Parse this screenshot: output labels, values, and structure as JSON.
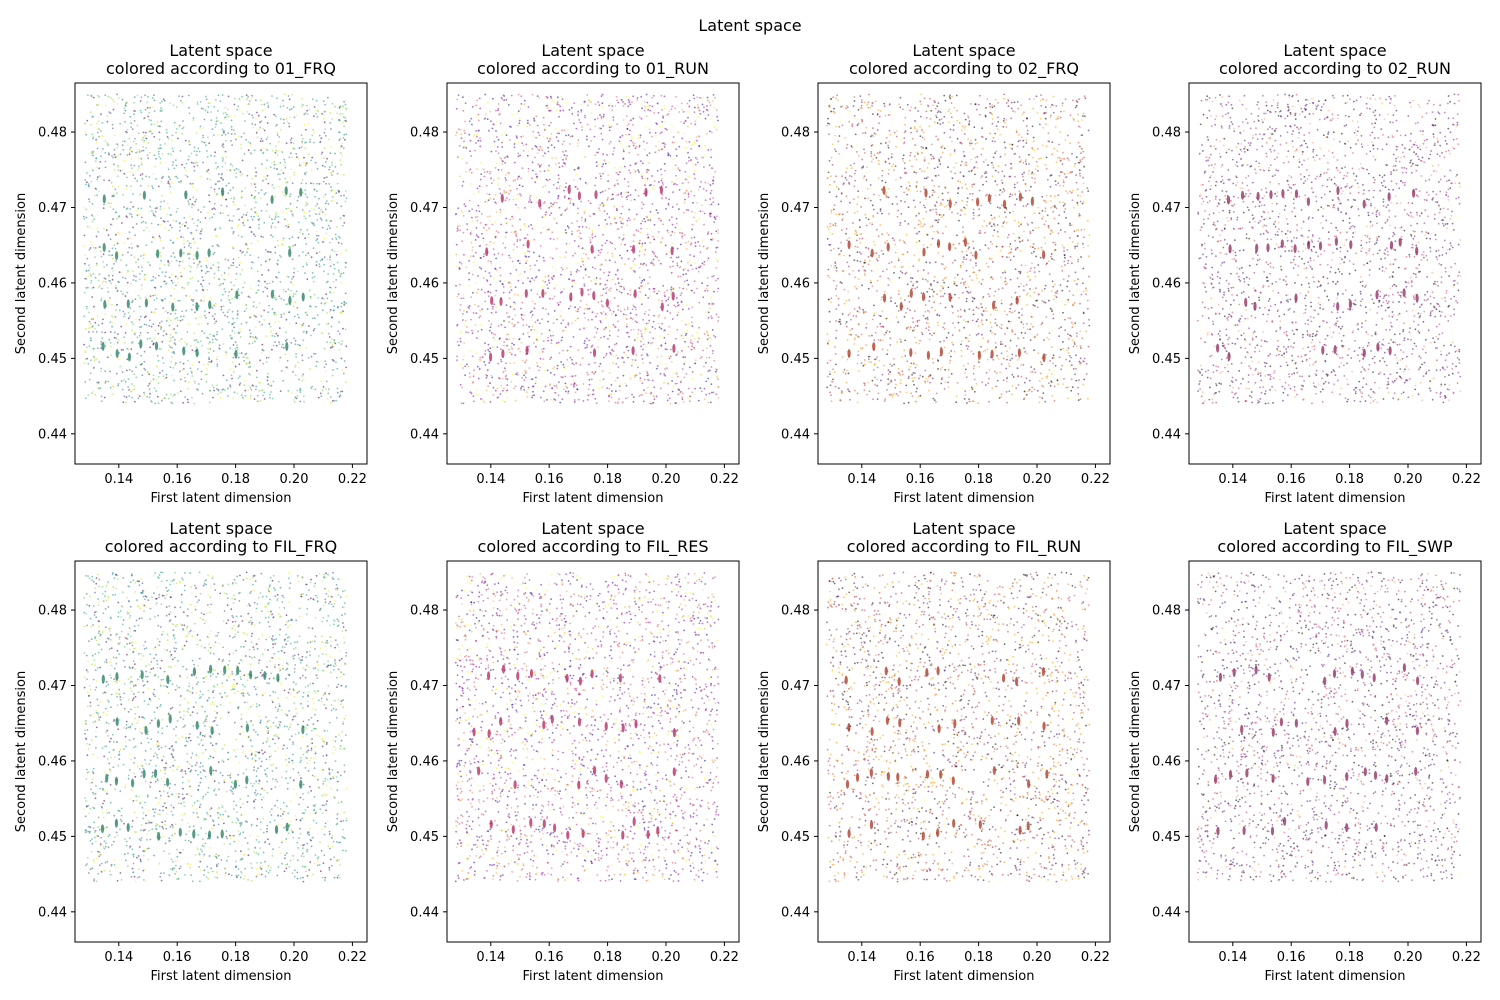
{
  "figure": {
    "suptitle": "Latent space"
  },
  "chart_data": [
    {
      "type": "scatter",
      "title": "Latent space",
      "subtitle": "colored according to 01_FRQ",
      "xlabel": "First latent dimension",
      "ylabel": "Second latent dimension",
      "xlim": [
        0.125,
        0.225
      ],
      "ylim": [
        0.436,
        0.4865
      ],
      "xticks": [
        "0.14",
        "0.16",
        "0.18",
        "0.20",
        "0.22"
      ],
      "yticks": [
        "0.44",
        "0.45",
        "0.46",
        "0.47",
        "0.48"
      ],
      "colormap": "viridis",
      "palette": [
        "#440154",
        "#3b528b",
        "#21918c",
        "#2a788e",
        "#5ec962",
        "#addc30",
        "#fde725",
        "#22a884"
      ],
      "cluster_color": "#1f7a5c",
      "point_cloud": {
        "x_range": [
          0.128,
          0.218
        ],
        "y_range": [
          0.44,
          0.485
        ],
        "density": "dense"
      }
    },
    {
      "type": "scatter",
      "title": "Latent space",
      "subtitle": "colored according to 01_RUN",
      "xlabel": "First latent dimension",
      "ylabel": "Second latent dimension",
      "xlim": [
        0.125,
        0.225
      ],
      "ylim": [
        0.436,
        0.4865
      ],
      "xticks": [
        "0.14",
        "0.16",
        "0.18",
        "0.20",
        "0.22"
      ],
      "yticks": [
        "0.44",
        "0.45",
        "0.46",
        "0.47",
        "0.48"
      ],
      "colormap": "plasma",
      "palette": [
        "#0d0887",
        "#6a00a8",
        "#b12a90",
        "#e16462",
        "#fca636",
        "#f0f921",
        "#cc4778",
        "#7e03a8"
      ],
      "cluster_color": "#b0245e",
      "point_cloud": {
        "x_range": [
          0.128,
          0.218
        ],
        "y_range": [
          0.44,
          0.485
        ],
        "density": "dense"
      }
    },
    {
      "type": "scatter",
      "title": "Latent space",
      "subtitle": "colored according to 02_FRQ",
      "xlabel": "First latent dimension",
      "ylabel": "Second latent dimension",
      "xlim": [
        0.125,
        0.225
      ],
      "ylim": [
        0.436,
        0.4865
      ],
      "xticks": [
        "0.14",
        "0.16",
        "0.18",
        "0.20",
        "0.22"
      ],
      "yticks": [
        "0.44",
        "0.45",
        "0.46",
        "0.47",
        "0.48"
      ],
      "colormap": "inferno",
      "palette": [
        "#000004",
        "#420a68",
        "#932667",
        "#dd513a",
        "#fca50a",
        "#fcffa4",
        "#bc3754",
        "#f98e09"
      ],
      "cluster_color": "#a8321e",
      "point_cloud": {
        "x_range": [
          0.128,
          0.218
        ],
        "y_range": [
          0.44,
          0.485
        ],
        "density": "dense"
      }
    },
    {
      "type": "scatter",
      "title": "Latent space",
      "subtitle": "colored according to 02_RUN",
      "xlabel": "First latent dimension",
      "ylabel": "Second latent dimension",
      "xlim": [
        0.125,
        0.225
      ],
      "ylim": [
        0.436,
        0.4865
      ],
      "xticks": [
        "0.14",
        "0.16",
        "0.18",
        "0.20",
        "0.22"
      ],
      "yticks": [
        "0.44",
        "0.45",
        "0.46",
        "0.47",
        "0.48"
      ],
      "colormap": "magma",
      "palette": [
        "#000004",
        "#3b0f70",
        "#8c2981",
        "#de4968",
        "#fe9f6d",
        "#fcfdbf",
        "#b73779",
        "#51127c"
      ],
      "cluster_color": "#8c2457",
      "point_cloud": {
        "x_range": [
          0.128,
          0.218
        ],
        "y_range": [
          0.44,
          0.485
        ],
        "density": "dense"
      }
    },
    {
      "type": "scatter",
      "title": "Latent space",
      "subtitle": "colored according to FIL_FRQ",
      "xlabel": "First latent dimension",
      "ylabel": "Second latent dimension",
      "xlim": [
        0.125,
        0.225
      ],
      "ylim": [
        0.436,
        0.4865
      ],
      "xticks": [
        "0.14",
        "0.16",
        "0.18",
        "0.20",
        "0.22"
      ],
      "yticks": [
        "0.44",
        "0.45",
        "0.46",
        "0.47",
        "0.48"
      ],
      "colormap": "viridis",
      "palette": [
        "#440154",
        "#3b528b",
        "#21918c",
        "#2a788e",
        "#5ec962",
        "#addc30",
        "#fde725",
        "#22a884"
      ],
      "cluster_color": "#1f7a5c",
      "point_cloud": {
        "x_range": [
          0.128,
          0.218
        ],
        "y_range": [
          0.44,
          0.485
        ],
        "density": "dense"
      }
    },
    {
      "type": "scatter",
      "title": "Latent space",
      "subtitle": "colored according to FIL_RES",
      "xlabel": "First latent dimension",
      "ylabel": "Second latent dimension",
      "xlim": [
        0.125,
        0.225
      ],
      "ylim": [
        0.436,
        0.4865
      ],
      "xticks": [
        "0.14",
        "0.16",
        "0.18",
        "0.20",
        "0.22"
      ],
      "yticks": [
        "0.44",
        "0.45",
        "0.46",
        "0.47",
        "0.48"
      ],
      "colormap": "plasma",
      "palette": [
        "#0d0887",
        "#6a00a8",
        "#b12a90",
        "#e16462",
        "#fca636",
        "#f0f921",
        "#cc4778",
        "#7e03a8"
      ],
      "cluster_color": "#b0245e",
      "point_cloud": {
        "x_range": [
          0.128,
          0.218
        ],
        "y_range": [
          0.44,
          0.485
        ],
        "density": "dense"
      }
    },
    {
      "type": "scatter",
      "title": "Latent space",
      "subtitle": "colored according to FIL_RUN",
      "xlabel": "First latent dimension",
      "ylabel": "Second latent dimension",
      "xlim": [
        0.125,
        0.225
      ],
      "ylim": [
        0.436,
        0.4865
      ],
      "xticks": [
        "0.14",
        "0.16",
        "0.18",
        "0.20",
        "0.22"
      ],
      "yticks": [
        "0.44",
        "0.45",
        "0.46",
        "0.47",
        "0.48"
      ],
      "colormap": "inferno",
      "palette": [
        "#000004",
        "#420a68",
        "#932667",
        "#dd513a",
        "#fca50a",
        "#fcffa4",
        "#bc3754",
        "#f98e09"
      ],
      "cluster_color": "#a8321e",
      "point_cloud": {
        "x_range": [
          0.128,
          0.218
        ],
        "y_range": [
          0.44,
          0.485
        ],
        "density": "dense"
      }
    },
    {
      "type": "scatter",
      "title": "Latent space",
      "subtitle": "colored according to FIL_SWP",
      "xlabel": "First latent dimension",
      "ylabel": "Second latent dimension",
      "xlim": [
        0.125,
        0.225
      ],
      "ylim": [
        0.436,
        0.4865
      ],
      "xticks": [
        "0.14",
        "0.16",
        "0.18",
        "0.20",
        "0.22"
      ],
      "yticks": [
        "0.44",
        "0.45",
        "0.46",
        "0.47",
        "0.48"
      ],
      "colormap": "magma",
      "palette": [
        "#000004",
        "#3b0f70",
        "#8c2981",
        "#de4968",
        "#fe9f6d",
        "#fcfdbf",
        "#b73779",
        "#51127c"
      ],
      "cluster_color": "#8c2457",
      "point_cloud": {
        "x_range": [
          0.128,
          0.218
        ],
        "y_range": [
          0.44,
          0.485
        ],
        "density": "dense"
      }
    }
  ]
}
